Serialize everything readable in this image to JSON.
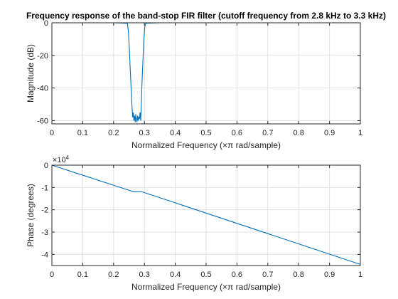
{
  "chart_data": [
    {
      "type": "line",
      "title": "Frequency response of the band-stop FIR filter (cutoff frequency from 2.8 kHz to 3.3 kHz)",
      "xlabel": "Normalized Frequency  (×π rad/sample)",
      "ylabel": "Magnitude (dB)",
      "xlim": [
        0,
        1
      ],
      "ylim": [
        -62,
        0
      ],
      "xticks": [
        0,
        0.1,
        0.2,
        0.3,
        0.4,
        0.5,
        0.6,
        0.7,
        0.8,
        0.9,
        1
      ],
      "xtick_labels": [
        "0",
        "0.1",
        "0.2",
        "0.3",
        "0.4",
        "0.5",
        "0.6",
        "0.7",
        "0.8",
        "0.9",
        "1"
      ],
      "yticks": [
        0,
        -20,
        -40,
        -60
      ],
      "ytick_labels": [
        "0",
        "-20",
        "-40",
        "-60"
      ],
      "grid": true,
      "series": [
        {
          "color": "#0072bd",
          "x": [
            0,
            0.2,
            0.245,
            0.248,
            0.251,
            0.254,
            0.257,
            0.26,
            0.262,
            0.264,
            0.266,
            0.268,
            0.27,
            0.272,
            0.274,
            0.276,
            0.278,
            0.28,
            0.282,
            0.284,
            0.286,
            0.288,
            0.29,
            0.292,
            0.295,
            0.298,
            0.301,
            0.304,
            0.35,
            1
          ],
          "y": [
            0,
            0,
            -0.3,
            -5,
            -15,
            -28,
            -40,
            -52,
            -58,
            -55,
            -60,
            -57,
            -61,
            -56,
            -59,
            -61,
            -57,
            -60,
            -58,
            -59,
            -55,
            -60,
            -49,
            -38,
            -24,
            -11,
            -3,
            -0.3,
            0,
            0
          ]
        }
      ]
    },
    {
      "type": "line",
      "title": "",
      "xlabel": "Normalized Frequency  (×π rad/sample)",
      "ylabel": "Phase (degrees)",
      "multiplier_base": "×10",
      "multiplier_exp": "4",
      "xlim": [
        0,
        1
      ],
      "ylim": [
        -4.5,
        0
      ],
      "xticks": [
        0,
        0.1,
        0.2,
        0.3,
        0.4,
        0.5,
        0.6,
        0.7,
        0.8,
        0.9,
        1
      ],
      "xtick_labels": [
        "0",
        "0.1",
        "0.2",
        "0.3",
        "0.4",
        "0.5",
        "0.6",
        "0.7",
        "0.8",
        "0.9",
        "1"
      ],
      "yticks": [
        0,
        -1,
        -2,
        -3,
        -4
      ],
      "ytick_labels": [
        "0",
        "-1",
        "-2",
        "-3",
        "-4"
      ],
      "grid": true,
      "series": [
        {
          "color": "#0072bd",
          "x": [
            0,
            0.255,
            0.265,
            0.275,
            0.29,
            0.3,
            1
          ],
          "y": [
            0,
            -1.15,
            -1.19,
            -1.19,
            -1.19,
            -1.23,
            -4.45
          ]
        }
      ]
    }
  ]
}
